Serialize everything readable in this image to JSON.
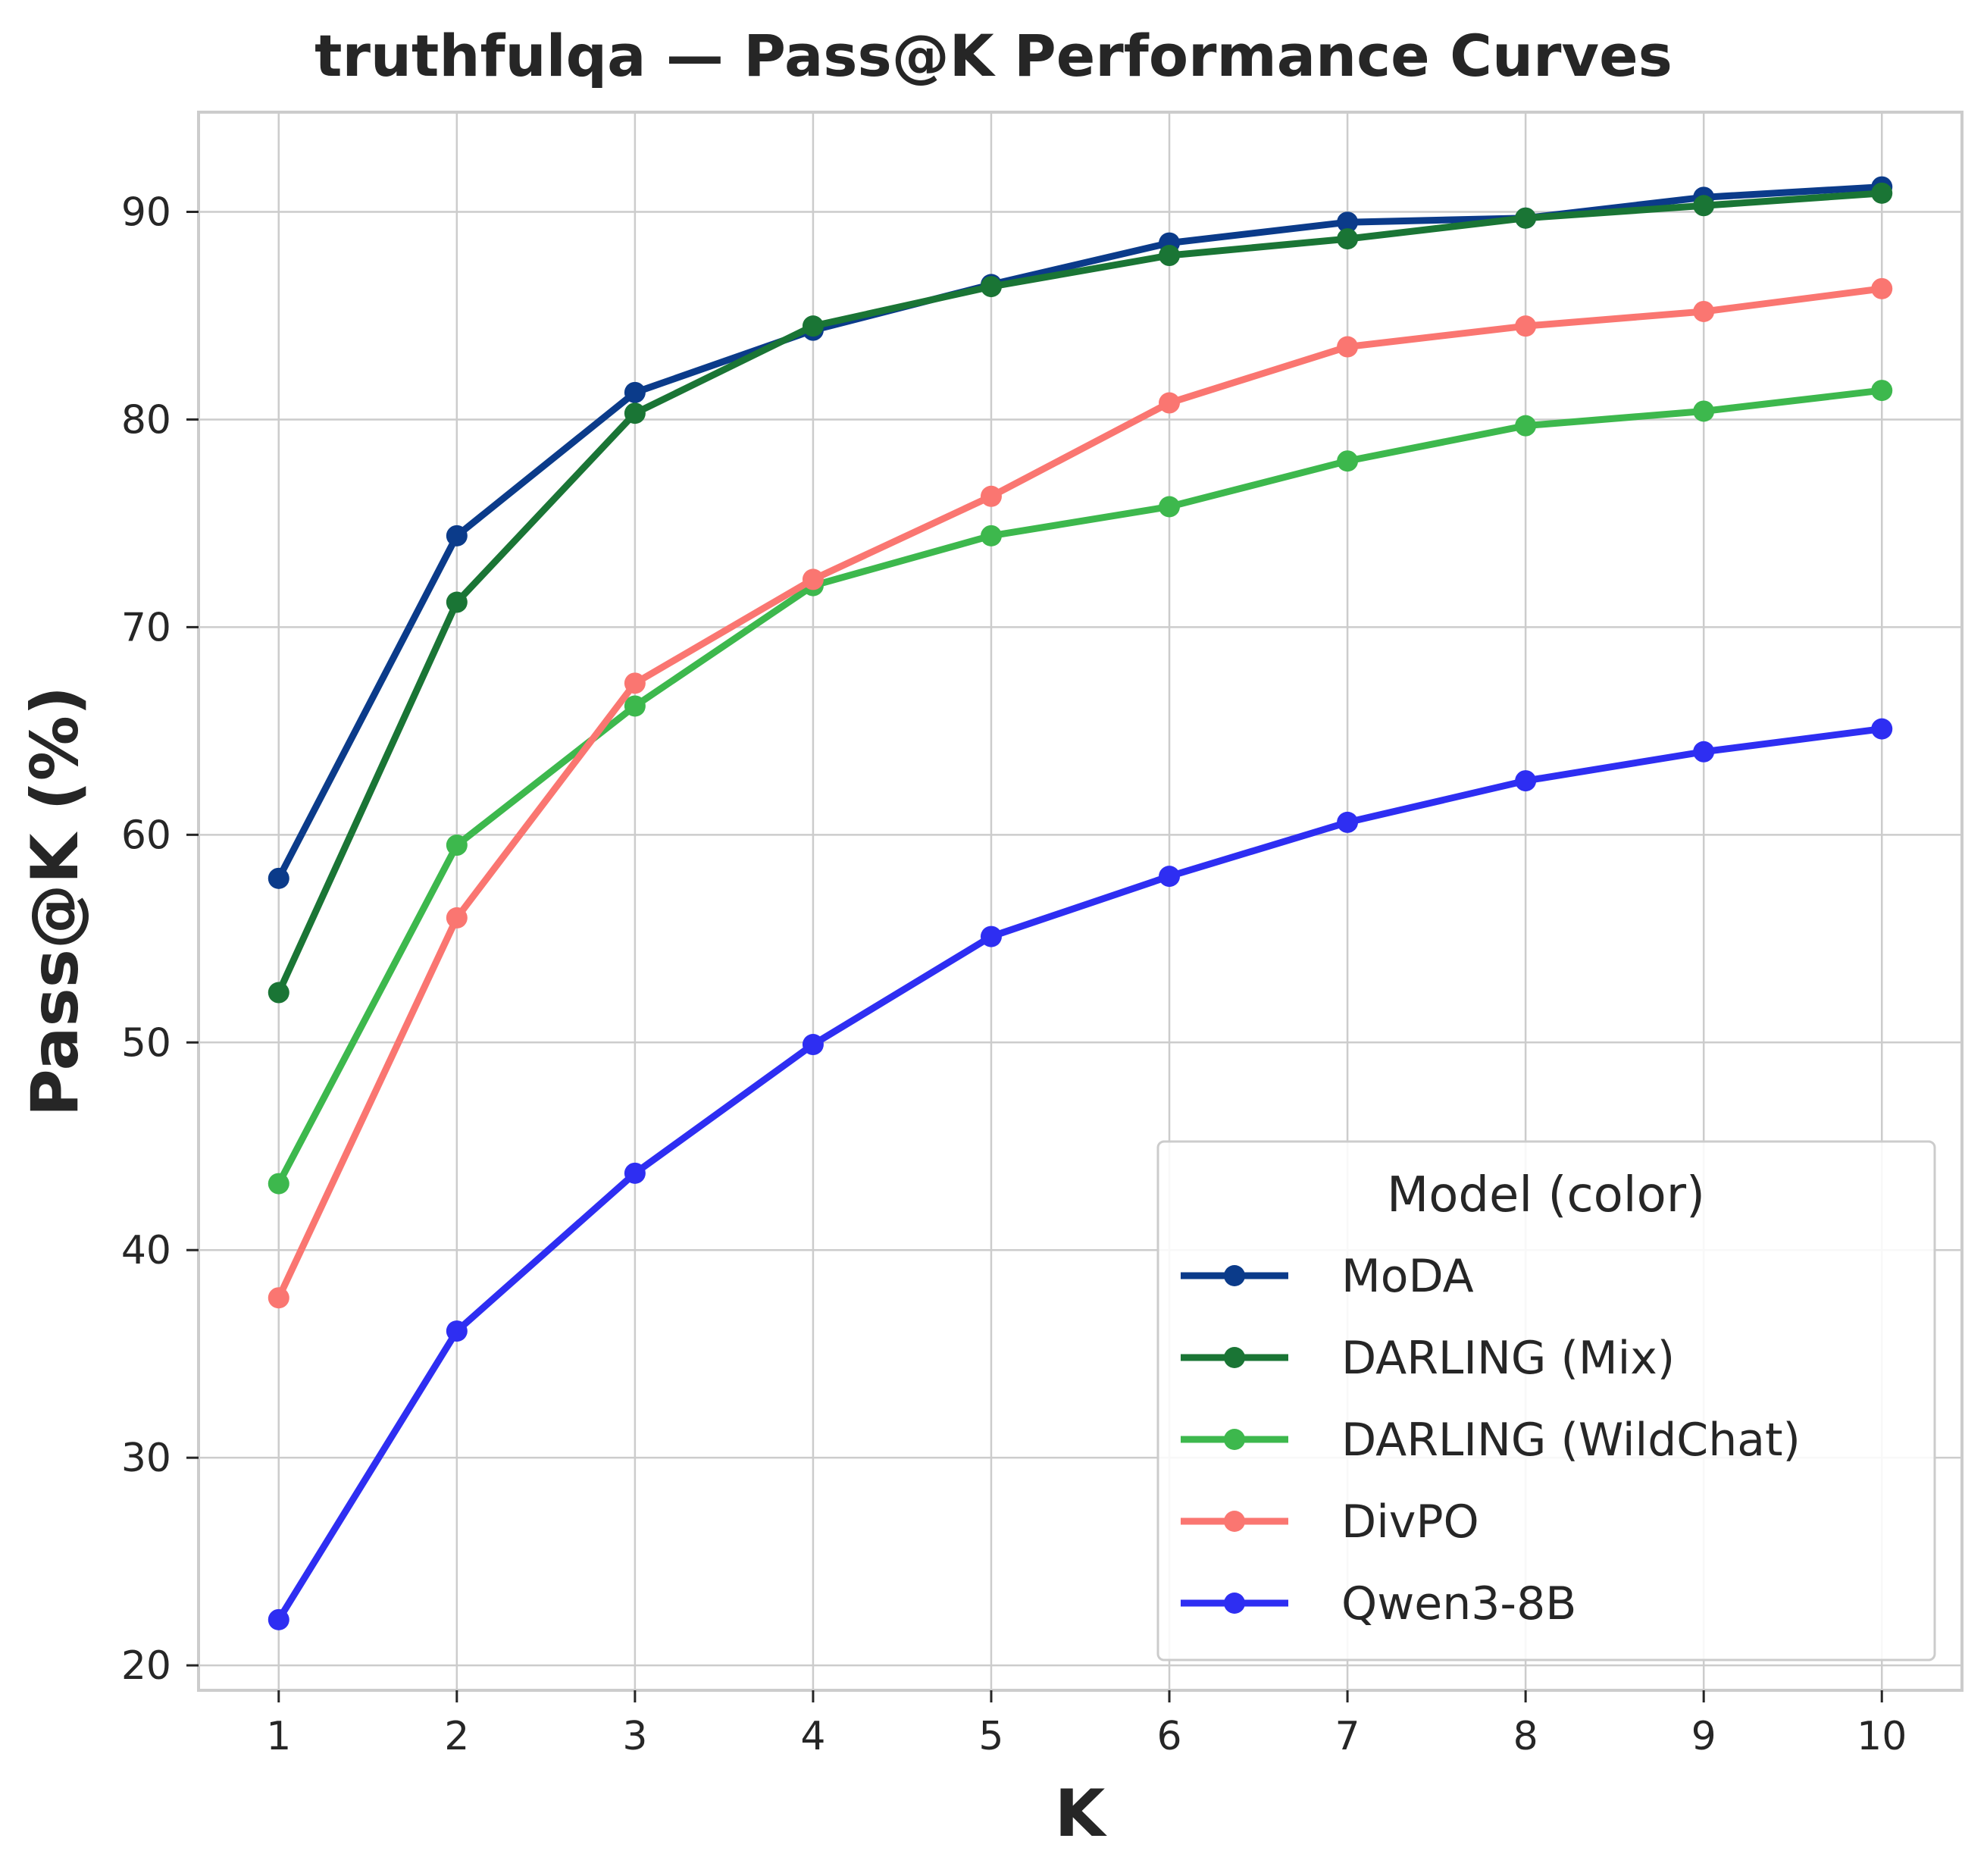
{
  "chart_data": {
    "type": "line",
    "title": "truthfulqa — Pass@K Performance Curves",
    "xlabel": "K",
    "ylabel": "Pass@K (%)",
    "x": [
      1,
      2,
      3,
      4,
      5,
      6,
      7,
      8,
      9,
      10
    ],
    "xticks": [
      "1",
      "2",
      "3",
      "4",
      "5",
      "6",
      "7",
      "8",
      "9",
      "10"
    ],
    "yticks": [
      "20",
      "30",
      "40",
      "50",
      "60",
      "70",
      "80",
      "90"
    ],
    "xlim": [
      0.55,
      10.45
    ],
    "ylim": [
      18.8,
      94.8
    ],
    "grid": true,
    "legend": {
      "title": "Model (color)",
      "placement": "lower-right"
    },
    "series": [
      {
        "name": "MoDA",
        "color": "#0b3b8a",
        "values": [
          57.9,
          74.4,
          81.3,
          84.3,
          86.5,
          88.5,
          89.5,
          89.7,
          90.7,
          91.2
        ]
      },
      {
        "name": "DARLING (Mix)",
        "color": "#1a7535",
        "values": [
          52.4,
          71.2,
          80.3,
          84.5,
          86.4,
          87.9,
          88.7,
          89.7,
          90.3,
          90.9
        ]
      },
      {
        "name": "DARLING (WildChat)",
        "color": "#3db84d",
        "values": [
          43.2,
          59.5,
          66.2,
          72.0,
          74.4,
          75.8,
          78.0,
          79.7,
          80.4,
          81.4
        ]
      },
      {
        "name": "DivPO",
        "color": "#fa7671",
        "values": [
          37.7,
          56.0,
          67.3,
          72.3,
          76.3,
          80.8,
          83.5,
          84.5,
          85.2,
          86.3
        ]
      },
      {
        "name": "Qwen3-8B",
        "color": "#2e2ef2",
        "values": [
          22.2,
          36.1,
          43.7,
          49.9,
          55.1,
          58.0,
          60.6,
          62.6,
          64.0,
          65.1
        ]
      }
    ]
  }
}
